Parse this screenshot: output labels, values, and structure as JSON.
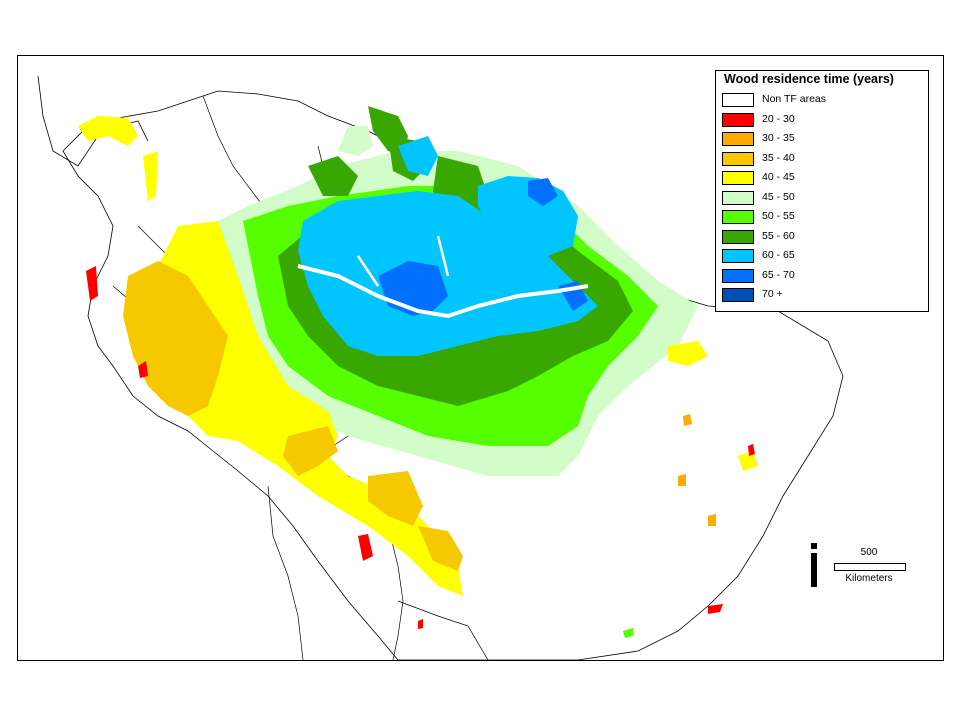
{
  "legend": {
    "title": "Wood residence time (years)",
    "items": [
      {
        "label": "Non TF areas",
        "color": "#ffffff"
      },
      {
        "label": "20 - 30",
        "color": "#ff0000"
      },
      {
        "label": "30 - 35",
        "color": "#ffaa00"
      },
      {
        "label": "35 - 40",
        "color": "#f5c800"
      },
      {
        "label": "40 - 45",
        "color": "#ffff00"
      },
      {
        "label": "45 - 50",
        "color": "#d2fcc8"
      },
      {
        "label": "50 - 55",
        "color": "#55ff00"
      },
      {
        "label": "55 - 60",
        "color": "#38a800"
      },
      {
        "label": "60 - 65",
        "color": "#00c5ff"
      },
      {
        "label": "65 - 70",
        "color": "#0070ff"
      },
      {
        "label": "70 +",
        "color": "#0050b4"
      }
    ]
  },
  "scale_bar": {
    "value": "500",
    "unit": "Kilometers"
  }
}
